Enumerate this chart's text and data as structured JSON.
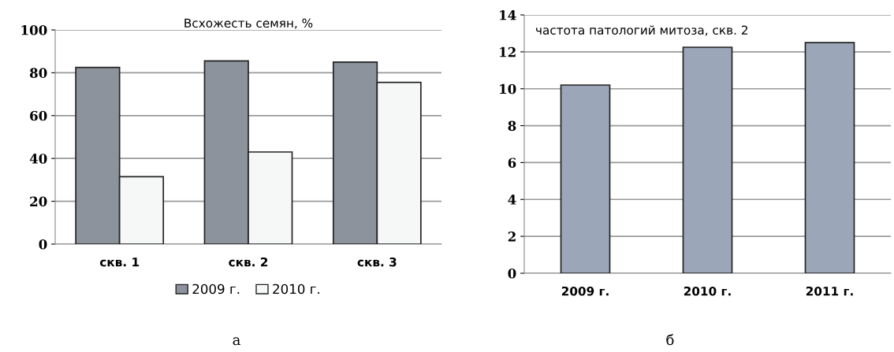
{
  "chart_data": [
    {
      "type": "bar",
      "title": "Всхожесть семян, %",
      "categories": [
        "скв. 1",
        "скв. 2",
        "скв. 3"
      ],
      "series": [
        {
          "name": "2009 г.",
          "color": "#8c939c",
          "values": [
            82.5,
            85.5,
            85
          ]
        },
        {
          "name": "2010 г.",
          "color": "#f6f7f7",
          "values": [
            31.5,
            43,
            75.5
          ]
        }
      ],
      "ylim": [
        0,
        100
      ],
      "yticks": [
        0,
        20,
        40,
        60,
        80,
        100
      ],
      "grid": "y",
      "legend": "bottom",
      "annotations": [
        "а"
      ]
    },
    {
      "type": "bar",
      "title": "частота патологий митоза, скв. 2",
      "categories": [
        "2009 г.",
        "2010 г.",
        "2011 г."
      ],
      "values": [
        10.2,
        12.25,
        12.5
      ],
      "color": "#9ba7b8",
      "ylim": [
        0,
        14
      ],
      "yticks": [
        0,
        2,
        4,
        6,
        8,
        10,
        12,
        14
      ],
      "grid": "y",
      "annotations": [
        "б"
      ]
    }
  ]
}
